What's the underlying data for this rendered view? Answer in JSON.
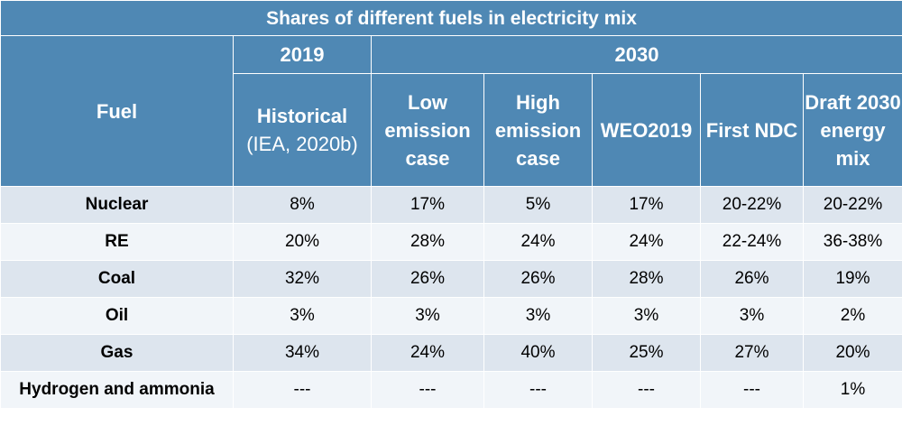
{
  "title": "Shares of different fuels in electricity mix",
  "header": {
    "fuel_label": "Fuel",
    "year_2019": "2019",
    "year_2030": "2030",
    "historical_title": "Historical",
    "historical_source": "(IEA, 2020b)",
    "scenarios": [
      "Low emission case",
      "High emission case",
      "WEO2019",
      "First NDC",
      "Draft 2030 energy mix"
    ]
  },
  "rows": [
    {
      "fuel": "Nuclear",
      "values": [
        "8%",
        "17%",
        "5%",
        "17%",
        "20-22%",
        "20-22%"
      ]
    },
    {
      "fuel": "RE",
      "values": [
        "20%",
        "28%",
        "24%",
        "24%",
        "22-24%",
        "36-38%"
      ]
    },
    {
      "fuel": "Coal",
      "values": [
        "32%",
        "26%",
        "26%",
        "28%",
        "26%",
        "19%"
      ]
    },
    {
      "fuel": "Oil",
      "values": [
        "3%",
        "3%",
        "3%",
        "3%",
        "3%",
        "2%"
      ]
    },
    {
      "fuel": "Gas",
      "values": [
        "34%",
        "24%",
        "40%",
        "25%",
        "27%",
        "20%"
      ]
    },
    {
      "fuel": "Hydrogen and ammonia",
      "values": [
        "---",
        "---",
        "---",
        "---",
        "---",
        "1%"
      ]
    }
  ],
  "colors": {
    "header_bg": "#4f88b4",
    "row_odd": "#dde5ee",
    "row_even": "#f1f5f9"
  }
}
